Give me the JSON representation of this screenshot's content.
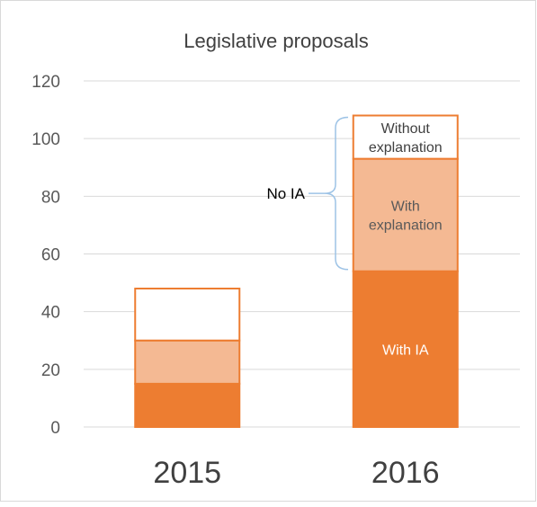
{
  "chart_data": {
    "type": "bar",
    "stacked": true,
    "title": "Legislative proposals",
    "categories": [
      "2015",
      "2016"
    ],
    "ylim": [
      0,
      120
    ],
    "yticks": [
      0,
      20,
      40,
      60,
      80,
      100,
      120
    ],
    "grid": true,
    "colors": {
      "with_ia": "#ed7d31",
      "with_explanation": "#f4b993",
      "without_explanation": "#ffffff",
      "outline": "#ed7d31",
      "bracket": "#9dc3e6"
    },
    "series": [
      {
        "key": "with_ia",
        "name": "With IA",
        "values": [
          15,
          54
        ]
      },
      {
        "key": "with_explanation",
        "name": "With explanation",
        "values": [
          15,
          39
        ]
      },
      {
        "key": "without_explanation",
        "name": "Without explanation",
        "values": [
          18,
          15
        ]
      }
    ],
    "annotations": {
      "bracket_label": "No IA",
      "bracket_category": "2016",
      "bracket_range": [
        54,
        108
      ]
    },
    "segment_labels": {
      "with_ia_lines": [
        "With IA"
      ],
      "with_explanation_lines": [
        "With",
        "explanation"
      ],
      "without_explanation_lines": [
        "Without",
        "explanation"
      ]
    }
  }
}
